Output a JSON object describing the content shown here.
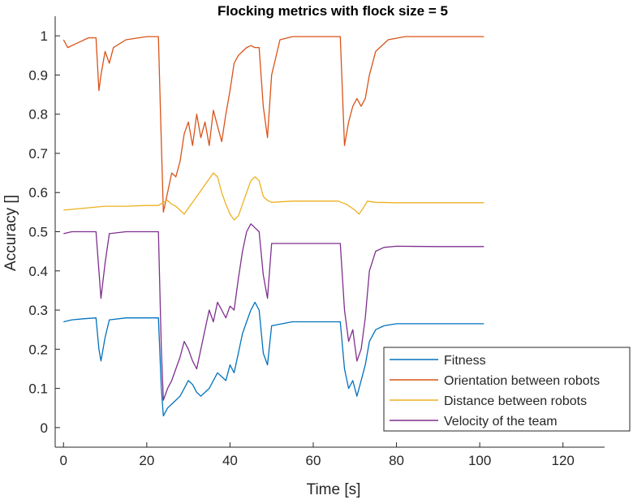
{
  "chart_data": {
    "type": "line",
    "title": "Flocking metrics with flock size = 5",
    "xlabel": "Time [s]",
    "ylabel": "Accuracy []",
    "xlim": [
      -2,
      130
    ],
    "ylim": [
      -0.05,
      1.05
    ],
    "xticks": [
      0,
      20,
      40,
      60,
      80,
      100,
      120
    ],
    "yticks": [
      0,
      0.1,
      0.2,
      0.3,
      0.4,
      0.5,
      0.6,
      0.7,
      0.8,
      0.9,
      1
    ],
    "grid": false,
    "legend_position": "bottom-right",
    "series": [
      {
        "name": "Fitness",
        "color": "#0072BD",
        "x": [
          0,
          2,
          5,
          7.8,
          8.5,
          9,
          10,
          11,
          15,
          22.8,
          23.5,
          24,
          25,
          26,
          27,
          28,
          29,
          30,
          31,
          32,
          33,
          34,
          35,
          36,
          37,
          38,
          39,
          40,
          41,
          42,
          43,
          44,
          45,
          46,
          47,
          48,
          49,
          50,
          55,
          60,
          66.5,
          67.5,
          68.5,
          69.5,
          70.5,
          71.5,
          72.5,
          73.5,
          75,
          77,
          80,
          90,
          101
        ],
        "y": [
          0.27,
          0.275,
          0.278,
          0.28,
          0.2,
          0.17,
          0.23,
          0.275,
          0.28,
          0.28,
          0.1,
          0.03,
          0.05,
          0.06,
          0.07,
          0.08,
          0.1,
          0.12,
          0.11,
          0.09,
          0.08,
          0.09,
          0.1,
          0.12,
          0.14,
          0.13,
          0.12,
          0.16,
          0.14,
          0.19,
          0.24,
          0.27,
          0.3,
          0.32,
          0.3,
          0.19,
          0.16,
          0.26,
          0.27,
          0.27,
          0.27,
          0.15,
          0.1,
          0.12,
          0.08,
          0.12,
          0.16,
          0.22,
          0.25,
          0.26,
          0.265,
          0.265,
          0.265
        ]
      },
      {
        "name": "Orientation between robots",
        "color": "#D95319",
        "x": [
          0,
          1,
          3,
          6,
          7.8,
          8.5,
          9,
          10,
          11,
          12,
          15,
          20,
          22.8,
          23.3,
          24,
          25,
          26,
          27,
          28,
          29,
          30,
          31,
          32,
          33,
          34,
          35,
          36,
          37,
          38,
          39,
          40,
          41,
          42,
          43,
          44,
          45,
          46,
          47,
          48,
          49,
          50,
          52,
          55,
          60,
          66.5,
          67.5,
          68.5,
          69.5,
          70.5,
          71.5,
          72.5,
          73.5,
          75,
          78,
          82,
          90,
          101
        ],
        "y": [
          0.99,
          0.97,
          0.98,
          0.995,
          0.995,
          0.86,
          0.9,
          0.96,
          0.93,
          0.97,
          0.99,
          0.998,
          0.998,
          0.8,
          0.55,
          0.6,
          0.65,
          0.64,
          0.68,
          0.75,
          0.78,
          0.72,
          0.8,
          0.74,
          0.78,
          0.72,
          0.81,
          0.77,
          0.73,
          0.8,
          0.86,
          0.93,
          0.95,
          0.96,
          0.97,
          0.975,
          0.97,
          0.97,
          0.82,
          0.74,
          0.9,
          0.99,
          0.998,
          0.998,
          0.998,
          0.72,
          0.78,
          0.82,
          0.84,
          0.82,
          0.84,
          0.9,
          0.96,
          0.99,
          0.998,
          0.998,
          0.998
        ]
      },
      {
        "name": "Distance between robots",
        "color": "#EDB120",
        "x": [
          0,
          5,
          10,
          15,
          20,
          22.8,
          24,
          25,
          26,
          27,
          28,
          29,
          30,
          32,
          34,
          36,
          37,
          38,
          39,
          40,
          41,
          42,
          43,
          44,
          45,
          46,
          47,
          48,
          49,
          50,
          55,
          60,
          66,
          68,
          70,
          71,
          72,
          73,
          75,
          80,
          90,
          101
        ],
        "y": [
          0.555,
          0.56,
          0.565,
          0.565,
          0.567,
          0.567,
          0.575,
          0.58,
          0.57,
          0.565,
          0.555,
          0.545,
          0.56,
          0.59,
          0.62,
          0.65,
          0.64,
          0.6,
          0.57,
          0.545,
          0.53,
          0.54,
          0.57,
          0.6,
          0.63,
          0.64,
          0.63,
          0.59,
          0.58,
          0.575,
          0.578,
          0.578,
          0.578,
          0.57,
          0.555,
          0.545,
          0.56,
          0.578,
          0.575,
          0.574,
          0.574,
          0.574
        ]
      },
      {
        "name": "Velocity of the team",
        "color": "#7E2F8E",
        "x": [
          0,
          2,
          5,
          7.8,
          8.5,
          9,
          10,
          11,
          15,
          22.8,
          23.5,
          24,
          25,
          26,
          27,
          28,
          29,
          30,
          31,
          32,
          33,
          34,
          35,
          36,
          37,
          38,
          39,
          40,
          41,
          42,
          43,
          44,
          45,
          46,
          47,
          48,
          49,
          50,
          55,
          60,
          66.5,
          67.5,
          68.5,
          69.5,
          70.5,
          71.5,
          72.5,
          73.5,
          75,
          77,
          80,
          90,
          101
        ],
        "y": [
          0.495,
          0.5,
          0.5,
          0.5,
          0.4,
          0.33,
          0.42,
          0.495,
          0.5,
          0.5,
          0.2,
          0.07,
          0.1,
          0.12,
          0.15,
          0.18,
          0.22,
          0.2,
          0.17,
          0.15,
          0.2,
          0.25,
          0.3,
          0.27,
          0.32,
          0.3,
          0.28,
          0.31,
          0.3,
          0.38,
          0.45,
          0.5,
          0.52,
          0.51,
          0.5,
          0.39,
          0.33,
          0.47,
          0.47,
          0.47,
          0.47,
          0.3,
          0.22,
          0.25,
          0.17,
          0.2,
          0.28,
          0.4,
          0.45,
          0.46,
          0.463,
          0.462,
          0.462
        ]
      }
    ]
  }
}
